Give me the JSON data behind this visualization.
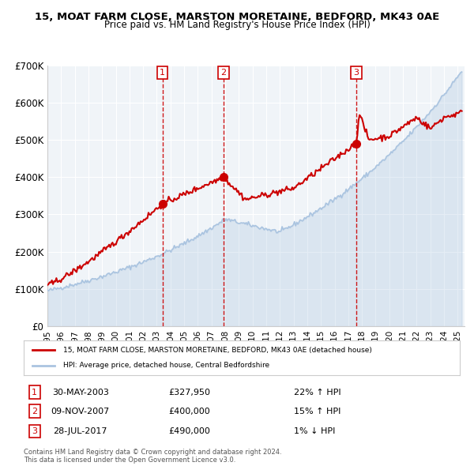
{
  "title_line1": "15, MOAT FARM CLOSE, MARSTON MORETAINE, BEDFORD, MK43 0AE",
  "title_line2": "Price paid vs. HM Land Registry's House Price Index (HPI)",
  "xlabel": "",
  "ylabel": "",
  "ylim": [
    0,
    700000
  ],
  "yticks": [
    0,
    100000,
    200000,
    300000,
    400000,
    500000,
    600000,
    700000
  ],
  "ytick_labels": [
    "£0",
    "£100K",
    "£200K",
    "£300K",
    "£400K",
    "£500K",
    "£600K",
    "£700K"
  ],
  "xlim_start": 1995.0,
  "xlim_end": 2025.5,
  "xtick_years": [
    1995,
    1996,
    1997,
    1998,
    1999,
    2000,
    2001,
    2002,
    2003,
    2004,
    2005,
    2006,
    2007,
    2008,
    2009,
    2010,
    2011,
    2012,
    2013,
    2014,
    2015,
    2016,
    2017,
    2018,
    2019,
    2020,
    2021,
    2022,
    2023,
    2024,
    2025
  ],
  "hpi_color": "#aac4e0",
  "price_color": "#cc0000",
  "purchase_marker_color": "#cc0000",
  "background_color": "#ffffff",
  "plot_bg_color": "#f0f4f8",
  "grid_color": "#ffffff",
  "vline_color": "#cc0000",
  "purchases": [
    {
      "date_dec": 2003.41,
      "price": 327950,
      "label": "1"
    },
    {
      "date_dec": 2007.86,
      "price": 400000,
      "label": "2"
    },
    {
      "date_dec": 2017.57,
      "price": 490000,
      "label": "3"
    }
  ],
  "legend_price_label": "15, MOAT FARM CLOSE, MARSTON MORETAINE, BEDFORD, MK43 0AE (detached house)",
  "legend_hpi_label": "HPI: Average price, detached house, Central Bedfordshire",
  "table_rows": [
    {
      "num": "1",
      "date": "30-MAY-2003",
      "price": "£327,950",
      "hpi": "22% ↑ HPI"
    },
    {
      "num": "2",
      "date": "09-NOV-2007",
      "price": "£400,000",
      "hpi": "15% ↑ HPI"
    },
    {
      "num": "3",
      "date": "28-JUL-2017",
      "price": "£490,000",
      "hpi": "1% ↓ HPI"
    }
  ],
  "footnote": "Contains HM Land Registry data © Crown copyright and database right 2024.\nThis data is licensed under the Open Government Licence v3.0."
}
